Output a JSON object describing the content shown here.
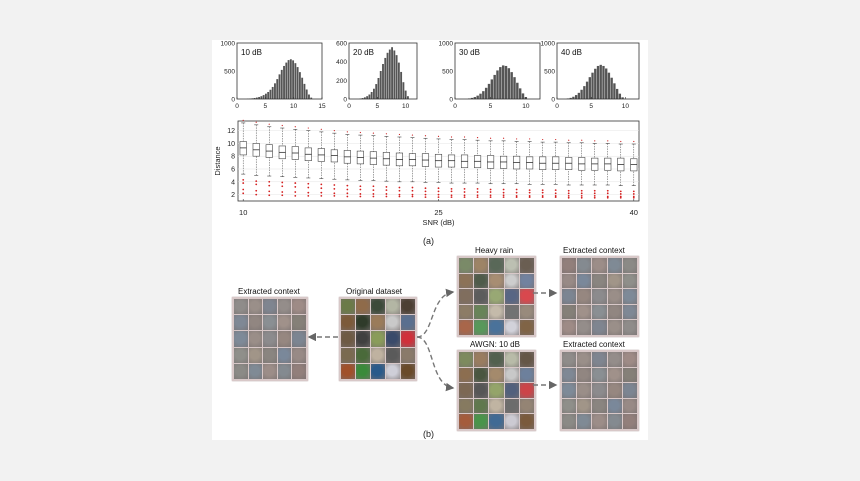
{
  "panel_a_label": "(a)",
  "panel_b_label": "(b)",
  "chart_data": [
    {
      "type": "bar",
      "title": "10 dB",
      "x_ticks": [
        "0",
        "5",
        "10",
        "15"
      ],
      "xlim": [
        0,
        15
      ],
      "y_ticks": [
        "0",
        "500",
        "1000"
      ],
      "ylim": [
        0,
        1000
      ],
      "bin_centers": [
        1.9,
        2.3,
        2.7,
        3.1,
        3.5,
        3.9,
        4.3,
        4.7,
        5.1,
        5.5,
        5.9,
        6.3,
        6.7,
        7.1,
        7.5,
        7.9,
        8.3,
        8.7,
        9.1,
        9.5,
        9.9,
        10.3,
        10.7,
        11.1,
        11.5,
        11.9,
        12.3,
        12.7,
        13.1
      ],
      "values": [
        5,
        8,
        12,
        18,
        26,
        36,
        50,
        70,
        95,
        125,
        165,
        215,
        280,
        355,
        440,
        520,
        590,
        650,
        695,
        710,
        690,
        640,
        570,
        480,
        380,
        270,
        170,
        80,
        25
      ]
    },
    {
      "type": "bar",
      "title": "20 dB",
      "x_ticks": [
        "0",
        "5",
        "10"
      ],
      "xlim": [
        0,
        12
      ],
      "y_ticks": [
        "0",
        "200",
        "400",
        "600"
      ],
      "ylim": [
        0,
        600
      ],
      "bin_centers": [
        2.0,
        2.4,
        2.8,
        3.2,
        3.6,
        4.0,
        4.4,
        4.8,
        5.2,
        5.6,
        6.0,
        6.4,
        6.8,
        7.2,
        7.6,
        8.0,
        8.4,
        8.8,
        9.2,
        9.6,
        10.0,
        10.4
      ],
      "values": [
        5,
        10,
        18,
        30,
        48,
        75,
        110,
        160,
        225,
        300,
        375,
        440,
        495,
        530,
        555,
        520,
        470,
        390,
        290,
        180,
        90,
        30
      ]
    },
    {
      "type": "bar",
      "title": "30 dB",
      "x_ticks": [
        "0",
        "5",
        "10"
      ],
      "xlim": [
        0,
        12
      ],
      "y_ticks": [
        "0",
        "500",
        "1000"
      ],
      "ylim": [
        0,
        1000
      ],
      "bin_centers": [
        2.0,
        2.4,
        2.8,
        3.2,
        3.6,
        4.0,
        4.4,
        4.8,
        5.2,
        5.6,
        6.0,
        6.4,
        6.8,
        7.2,
        7.6,
        8.0,
        8.4,
        8.8,
        9.2,
        9.6,
        10.0
      ],
      "values": [
        10,
        20,
        35,
        60,
        95,
        140,
        200,
        270,
        350,
        430,
        510,
        570,
        600,
        590,
        550,
        480,
        390,
        290,
        190,
        100,
        35
      ]
    },
    {
      "type": "bar",
      "title": "40 dB",
      "x_ticks": [
        "0",
        "5",
        "10"
      ],
      "xlim": [
        0,
        12
      ],
      "y_ticks": [
        "0",
        "500",
        "1000"
      ],
      "ylim": [
        0,
        1000
      ],
      "bin_centers": [
        1.6,
        2.0,
        2.4,
        2.8,
        3.2,
        3.6,
        4.0,
        4.4,
        4.8,
        5.2,
        5.6,
        6.0,
        6.4,
        6.8,
        7.2,
        7.6,
        8.0,
        8.4,
        8.8,
        9.2,
        9.6
      ],
      "values": [
        10,
        20,
        40,
        70,
        110,
        165,
        230,
        310,
        390,
        470,
        540,
        590,
        610,
        590,
        545,
        470,
        380,
        280,
        180,
        95,
        30
      ]
    },
    {
      "type": "box",
      "xlabel": "SNR (dB)",
      "ylabel": "Distance",
      "x_ticks": [
        "10",
        "25",
        "40"
      ],
      "xlim": [
        9.6,
        40.4
      ],
      "y_ticks": [
        "2",
        "4",
        "6",
        "8",
        "10",
        "12"
      ],
      "ylim": [
        1,
        13.5
      ],
      "snr": [
        10,
        11,
        12,
        13,
        14,
        15,
        16,
        17,
        18,
        19,
        20,
        21,
        22,
        23,
        24,
        25,
        26,
        27,
        28,
        29,
        30,
        31,
        32,
        33,
        34,
        35,
        36,
        37,
        38,
        39,
        40
      ],
      "median": [
        9.3,
        9.0,
        8.8,
        8.6,
        8.5,
        8.3,
        8.2,
        8.1,
        7.9,
        7.8,
        7.7,
        7.6,
        7.5,
        7.5,
        7.4,
        7.3,
        7.3,
        7.2,
        7.2,
        7.1,
        7.1,
        7.0,
        7.0,
        6.9,
        6.9,
        6.9,
        6.8,
        6.8,
        6.8,
        6.7,
        6.7
      ],
      "q1": [
        8.2,
        8.0,
        7.8,
        7.6,
        7.5,
        7.3,
        7.2,
        7.1,
        6.9,
        6.8,
        6.7,
        6.6,
        6.5,
        6.5,
        6.4,
        6.3,
        6.3,
        6.2,
        6.2,
        6.1,
        6.1,
        6.0,
        6.0,
        5.9,
        5.9,
        5.9,
        5.8,
        5.8,
        5.8,
        5.7,
        5.7
      ],
      "q3": [
        10.3,
        10.0,
        9.8,
        9.6,
        9.5,
        9.3,
        9.2,
        9.0,
        8.9,
        8.8,
        8.7,
        8.6,
        8.5,
        8.4,
        8.4,
        8.3,
        8.2,
        8.2,
        8.1,
        8.1,
        8.0,
        8.0,
        7.9,
        7.9,
        7.9,
        7.8,
        7.8,
        7.7,
        7.7,
        7.7,
        7.6
      ],
      "whisker_low": [
        5.2,
        5.0,
        4.9,
        4.8,
        4.7,
        4.6,
        4.5,
        4.4,
        4.3,
        4.2,
        4.2,
        4.1,
        4.0,
        4.0,
        3.9,
        3.9,
        3.8,
        3.8,
        3.8,
        3.7,
        3.7,
        3.7,
        3.6,
        3.6,
        3.6,
        3.5,
        3.5,
        3.5,
        3.5,
        3.4,
        3.4
      ],
      "whisker_high": [
        13.2,
        12.9,
        12.6,
        12.4,
        12.2,
        12.0,
        11.8,
        11.6,
        11.4,
        11.3,
        11.2,
        11.1,
        11.0,
        10.9,
        10.8,
        10.7,
        10.6,
        10.6,
        10.5,
        10.4,
        10.4,
        10.3,
        10.3,
        10.2,
        10.2,
        10.1,
        10.1,
        10.0,
        10.0,
        9.9,
        9.9
      ],
      "outliers_high": [
        13.6,
        13.3,
        13.0,
        12.8,
        12.6,
        12.4,
        12.2,
        12.0,
        11.8,
        11.7,
        11.6,
        11.5,
        11.4,
        11.3,
        11.2,
        11.1,
        11.0,
        11.0,
        10.9,
        10.8,
        10.8,
        10.7,
        10.7,
        10.6,
        10.6,
        10.5,
        10.5,
        10.4,
        10.4,
        10.3,
        10.3
      ],
      "outliers_low": [
        [
          4.3,
          3.8,
          2.8,
          2.2
        ],
        [
          4.1,
          3.6,
          2.6,
          2.0
        ],
        [
          4.0,
          3.4,
          2.5,
          1.9
        ],
        [
          3.9,
          3.3,
          2.4,
          1.9
        ],
        [
          3.8,
          3.2,
          2.4,
          1.8
        ],
        [
          3.7,
          3.1,
          2.3,
          1.8
        ],
        [
          3.6,
          3.0,
          2.3,
          1.8
        ],
        [
          3.5,
          2.9,
          2.2,
          1.8
        ],
        [
          3.4,
          2.8,
          2.2,
          1.7
        ],
        [
          3.3,
          2.8,
          2.1,
          1.7
        ],
        [
          3.3,
          2.7,
          2.1,
          1.7
        ],
        [
          3.2,
          2.7,
          2.1,
          1.7
        ],
        [
          3.1,
          2.6,
          2.0,
          1.7
        ],
        [
          3.1,
          2.6,
          2.0,
          1.7
        ],
        [
          3.0,
          2.5,
          2.0,
          1.6
        ],
        [
          3.0,
          2.5,
          2.0,
          1.6
        ],
        [
          2.9,
          2.5,
          1.9,
          1.6
        ],
        [
          2.9,
          2.4,
          1.9,
          1.6
        ],
        [
          2.9,
          2.4,
          1.9,
          1.6
        ],
        [
          2.8,
          2.4,
          1.9,
          1.6
        ],
        [
          2.8,
          2.3,
          1.9,
          1.6
        ],
        [
          2.8,
          2.3,
          1.8,
          1.6
        ],
        [
          2.7,
          2.3,
          1.8,
          1.6
        ],
        [
          2.7,
          2.3,
          1.8,
          1.6
        ],
        [
          2.7,
          2.2,
          1.8,
          1.6
        ],
        [
          2.6,
          2.2,
          1.8,
          1.5
        ],
        [
          2.6,
          2.2,
          1.8,
          1.5
        ],
        [
          2.6,
          2.2,
          1.8,
          1.5
        ],
        [
          2.6,
          2.2,
          1.7,
          1.5
        ],
        [
          2.5,
          2.1,
          1.7,
          1.5
        ],
        [
          2.5,
          2.1,
          1.7,
          1.5
        ]
      ]
    }
  ],
  "diagram": {
    "original": {
      "label": "Original dataset"
    },
    "extracted_left": {
      "label": "Extracted context"
    },
    "heavy_rain": {
      "label": "Heavy rain"
    },
    "extracted_rain": {
      "label": "Extracted context"
    },
    "awgn": {
      "label": "AWGN: 10 dB"
    },
    "extracted_awgn": {
      "label": "Extracted context"
    },
    "colors": {
      "context": [
        "#8f8c8a",
        "#9a8f89",
        "#7f8590",
        "#948d8a",
        "#9e8b86",
        "#7f8895",
        "#918681",
        "#8a8f93",
        "#a0918a",
        "#858078",
        "#7e8a98",
        "#9a8e88",
        "#8c8b8d",
        "#968780",
        "#7c8592",
        "#8f8f8a",
        "#a19588",
        "#8a8580",
        "#7a889a",
        "#988a86",
        "#8b8a86",
        "#7f8a95",
        "#9c8d88",
        "#848a90",
        "#927f7b"
      ],
      "original": [
        "#6b7a48",
        "#8f6b4a",
        "#3c4a3a",
        "#b3b6a4",
        "#4d3f33",
        "#7c5a3a",
        "#2f3b2a",
        "#9a7b5a",
        "#c9c9c9",
        "#5a6f8f",
        "#6e5a44",
        "#404040",
        "#8a9c5a",
        "#3a4a6a",
        "#d0303a",
        "#7a6a50",
        "#4a6a3a",
        "#bfb2a0",
        "#5a5a5a",
        "#8a7a6a",
        "#a0502a",
        "#3a8a3a",
        "#2a5a8a",
        "#cfcfd8",
        "#6a4a2a"
      ],
      "rain": [
        "#7a8a68",
        "#9d8466",
        "#596858",
        "#bcc0b2",
        "#6a5e52",
        "#8c7258",
        "#4f5b4a",
        "#a78d72",
        "#cdcdcd",
        "#72829f",
        "#806e5e",
        "#5c5c5c",
        "#98a874",
        "#586684",
        "#d8484e",
        "#8c7c66",
        "#688458",
        "#c4baaa",
        "#727272",
        "#988a7c",
        "#a8664a",
        "#58985a",
        "#4a729a",
        "#d2d2da",
        "#806446"
      ],
      "awgn": [
        "#7d8a5e",
        "#997c60",
        "#52604e",
        "#b8bba8",
        "#655646",
        "#8c6e50",
        "#4a5640",
        "#a48a6c",
        "#c8c8c8",
        "#6d809c",
        "#7c6854",
        "#565656",
        "#94a46a",
        "#52607c",
        "#cc4448",
        "#867a60",
        "#60784e",
        "#c0b4a2",
        "#6c6c6c",
        "#948474",
        "#a45c3c",
        "#4a944a",
        "#406a94",
        "#cccad2",
        "#7a5a3c"
      ]
    }
  }
}
